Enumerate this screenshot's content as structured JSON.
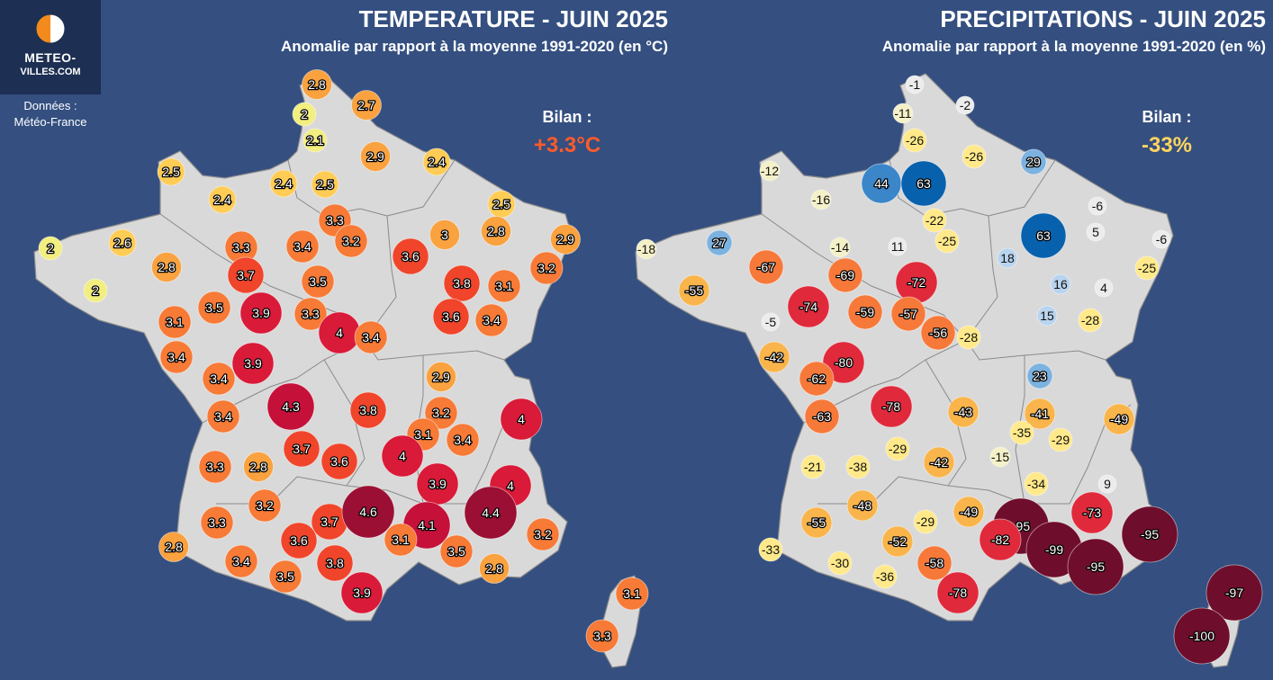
{
  "brand": {
    "logo_line1": "METEO-",
    "logo_line2": "VILLES.COM",
    "source_label": "Données :",
    "source_name": "Météo-France"
  },
  "temperature": {
    "title": "TEMPERATURE - JUIN 2025",
    "subtitle": "Anomalie par rapport à la moyenne 1991-2020 (en °C)",
    "bilan_label": "Bilan :",
    "bilan_value": "+3.3°C",
    "bilan_color": "#ff5a2a"
  },
  "precipitation": {
    "title": "PRECIPITATIONS - JUIN 2025",
    "subtitle": "Anomalie par rapport à la moyenne 1991-2020 (en %)",
    "bilan_label": "Bilan :",
    "bilan_value": "-33%",
    "bilan_color": "#ffd45e"
  },
  "colors": {
    "background": "#344f80",
    "land": "#d9d9d9",
    "borders": "#7a7a7a",
    "brand_panel": "#1d2f52"
  },
  "temperature_values": [
    "2.8",
    "2",
    "2.1",
    "2.7",
    "2.9",
    "2.4",
    "2.5",
    "2.4",
    "2.4",
    "2.5",
    "2",
    "2.6",
    "2.8",
    "2",
    "3.3",
    "3.4",
    "3.3",
    "3.2",
    "3.7",
    "3.5",
    "3.5",
    "3.9",
    "3.3",
    "4",
    "3.4",
    "3.1",
    "3.4",
    "3.9",
    "3.6",
    "3",
    "2.5",
    "2.8",
    "2.9",
    "3.2",
    "3.8",
    "3.1",
    "3.6",
    "3.4",
    "3.4",
    "4.3",
    "3.8",
    "3.4",
    "3.7",
    "3.6",
    "3.3",
    "2.8",
    "2.9",
    "3.2",
    "3.1",
    "3.4",
    "4",
    "4",
    "3.9",
    "4",
    "3.2",
    "3.3",
    "3.7",
    "4.6",
    "4.1",
    "4.4",
    "3.2",
    "3.6",
    "3.1",
    "3.5",
    "2.8",
    "2.8",
    "3.4",
    "3.8",
    "3.5",
    "3.9",
    "3.1",
    "3.3"
  ],
  "precipitation_values": [
    "-1",
    "-11",
    "-2",
    "-26",
    "-26",
    "-12",
    "44",
    "63",
    "29",
    "-16",
    "-22",
    "-6",
    "-18",
    "27",
    "-14",
    "11",
    "-25",
    "63",
    "5",
    "-6",
    "-67",
    "-69",
    "-72",
    "18",
    "-25",
    "-55",
    "16",
    "4",
    "-74",
    "-59",
    "-57",
    "-5",
    "15",
    "-28",
    "-56",
    "-28",
    "-80",
    "-42",
    "-62",
    "23",
    "-78",
    "-43",
    "-41",
    "-49",
    "-63",
    "-35",
    "-29",
    "-29",
    "-42",
    "-15",
    "-21",
    "-38",
    "-34",
    "9",
    "-48",
    "-73",
    "-49",
    "-95",
    "-95",
    "-82",
    "-55",
    "-29",
    "-33",
    "-52",
    "-99",
    "-30",
    "-58",
    "-95",
    "-36",
    "-78",
    "-97",
    "-100"
  ]
}
